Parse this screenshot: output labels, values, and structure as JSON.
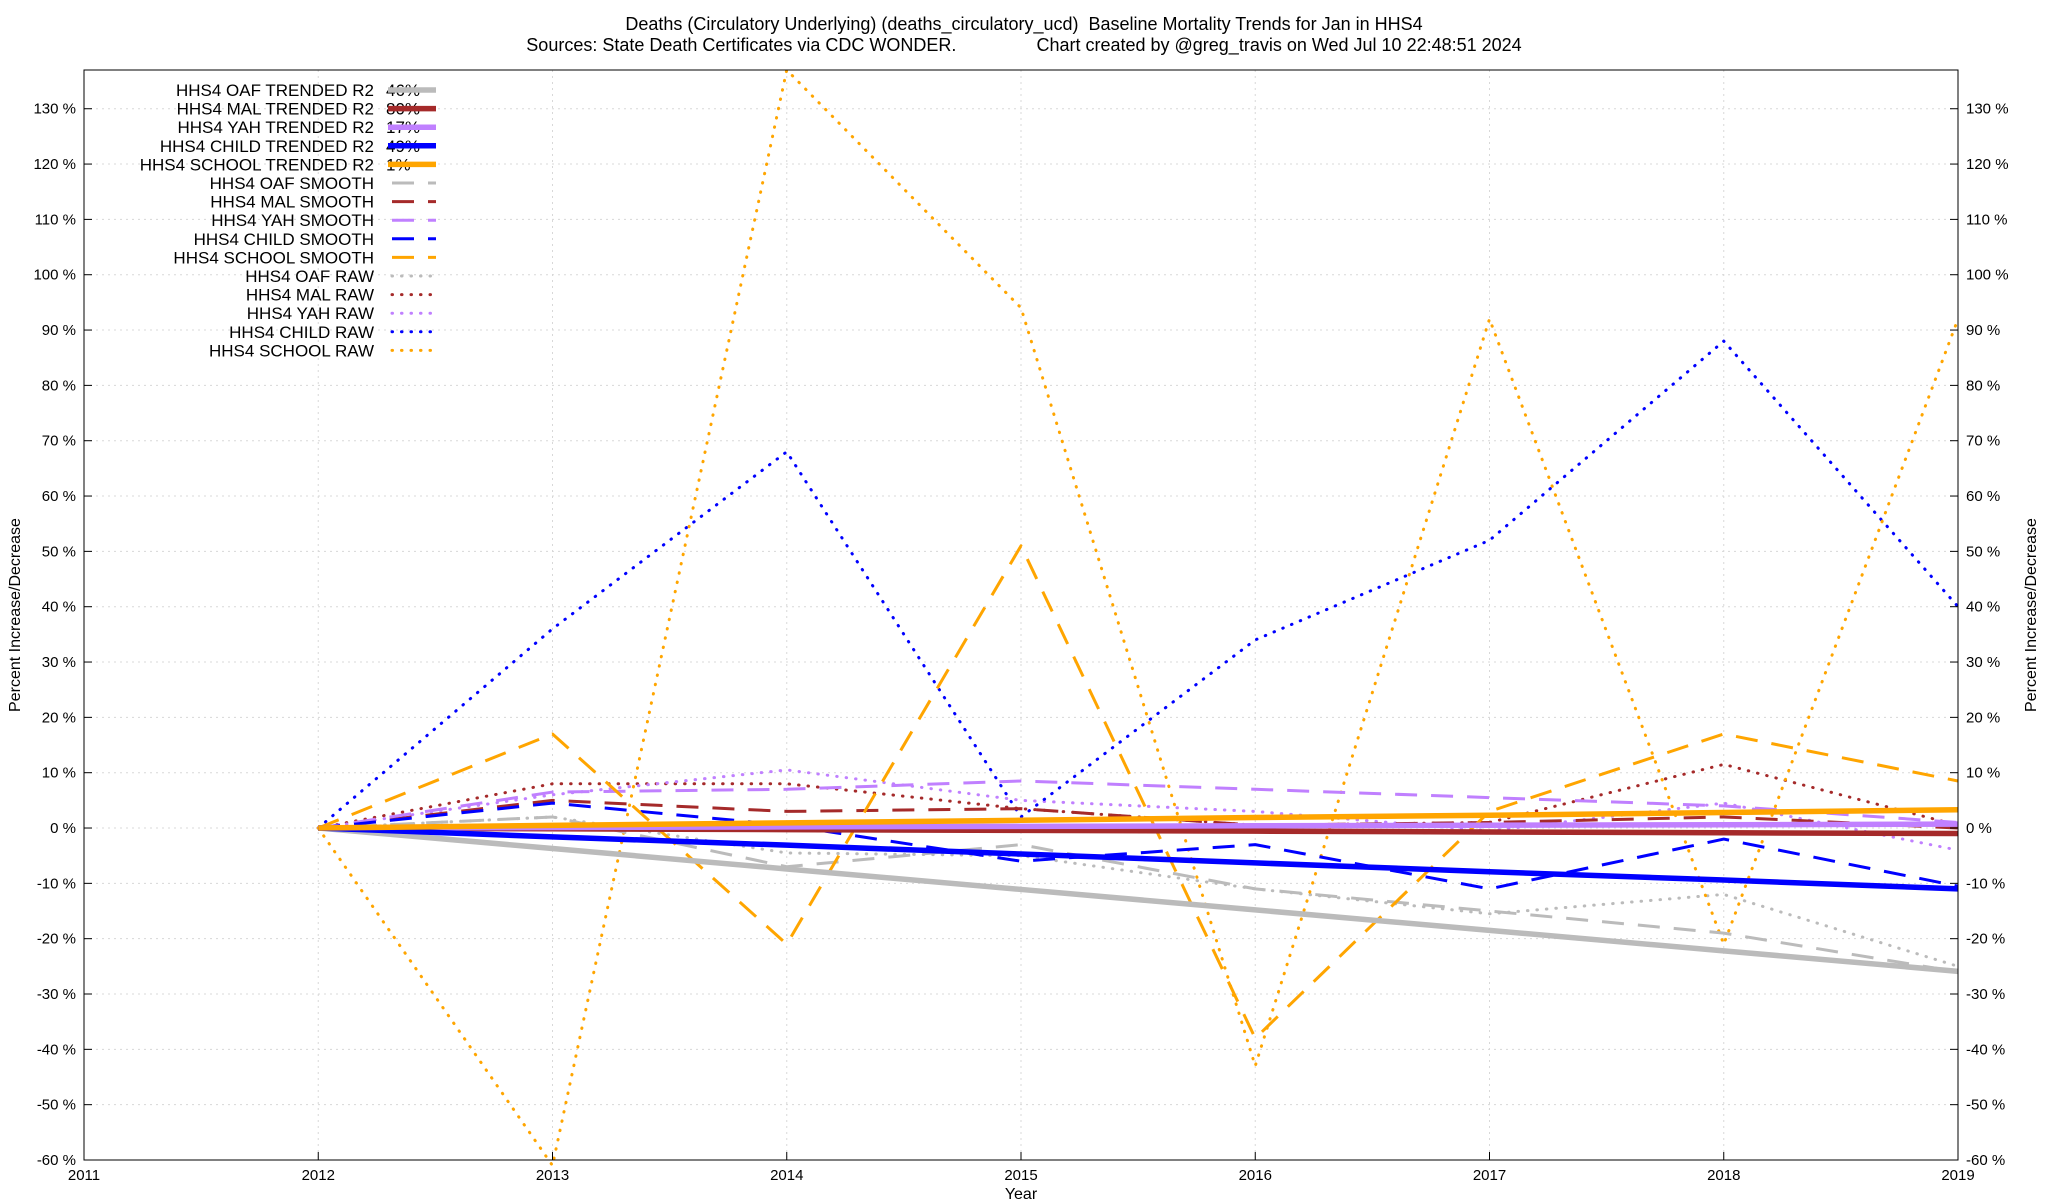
{
  "chart_data": {
    "type": "line",
    "title": "Deaths (Circulatory Underlying) (deaths_circulatory_ucd)  Baseline Mortality Trends for Jan in HHS4",
    "subtitle": "Sources: State Death Certificates via CDC WONDER.                Chart created by @greg_travis on Wed Jul 10 22:48:51 2024",
    "xlabel": "Year",
    "ylabel": "Percent Increase/Decrease",
    "y2label": "Percent Increase/Decrease",
    "xlim": [
      2011,
      2019
    ],
    "ylim": [
      -60,
      137
    ],
    "x_ticks": [
      "2011",
      "2012",
      "2013",
      "2014",
      "2015",
      "2016",
      "2017",
      "2018",
      "2019"
    ],
    "y_ticks": [
      "-60 %",
      "-50 %",
      "-40 %",
      "-30 %",
      "-20 %",
      "-10 %",
      "0 %",
      "10 %",
      "20 %",
      "30 %",
      "40 %",
      "50 %",
      "60 %",
      "70 %",
      "80 %",
      "90 %",
      "100 %",
      "110 %",
      "120 %",
      "130 %"
    ],
    "grid": true,
    "legend_position": "top-left",
    "x": [
      2012,
      2013,
      2014,
      2015,
      2016,
      2017,
      2018,
      2019
    ],
    "series": [
      {
        "name": "HHS4 OAF TRENDED R2",
        "r2": "46%",
        "kind": "trend",
        "color": "#bbbbbb",
        "values": [
          0,
          -3.7,
          -7.4,
          -11.1,
          -14.8,
          -18.5,
          -22.2,
          -25.9
        ]
      },
      {
        "name": "HHS4 MAL TRENDED R2",
        "r2": "80%",
        "kind": "trend",
        "color": "#a52a2a",
        "values": [
          0,
          -0.14,
          -0.29,
          -0.43,
          -0.57,
          -0.71,
          -0.86,
          -1.0
        ]
      },
      {
        "name": "HHS4 YAH TRENDED R2",
        "r2": "17%",
        "kind": "trend",
        "color": "#c080ff",
        "values": [
          0,
          0.1,
          0.2,
          0.3,
          0.4,
          0.5,
          0.6,
          0.7
        ]
      },
      {
        "name": "HHS4 CHILD TRENDED R2",
        "r2": "49%",
        "kind": "trend",
        "color": "#0000ff",
        "values": [
          0,
          -1.6,
          -3.1,
          -4.7,
          -6.3,
          -7.9,
          -9.4,
          -11.0
        ]
      },
      {
        "name": "HHS4 SCHOOL TRENDED R2",
        "r2": "1%",
        "kind": "trend",
        "color": "#ffa500",
        "values": [
          0,
          0.47,
          0.94,
          1.4,
          1.9,
          2.3,
          2.8,
          3.3
        ]
      },
      {
        "name": "HHS4 OAF SMOOTH",
        "r2": "",
        "kind": "smooth",
        "color": "#bbbbbb",
        "values": [
          0,
          2,
          -7,
          -3,
          -11,
          -15,
          -19,
          -26
        ]
      },
      {
        "name": "HHS4 MAL SMOOTH",
        "r2": "",
        "kind": "smooth",
        "color": "#a52a2a",
        "values": [
          0,
          5,
          3,
          3.5,
          0.5,
          1,
          2,
          0
        ]
      },
      {
        "name": "HHS4 YAH SMOOTH",
        "r2": "",
        "kind": "smooth",
        "color": "#c080ff",
        "values": [
          0,
          6.5,
          7,
          8.5,
          7,
          5.5,
          4,
          1
        ]
      },
      {
        "name": "HHS4 CHILD SMOOTH",
        "r2": "",
        "kind": "smooth",
        "color": "#0000ff",
        "values": [
          0,
          4.5,
          0.5,
          -6,
          -3,
          -11,
          -2,
          -10.5
        ]
      },
      {
        "name": "HHS4 SCHOOL SMOOTH",
        "r2": "",
        "kind": "smooth",
        "color": "#ffa500",
        "values": [
          0,
          17,
          -21,
          51,
          -38,
          3,
          17,
          8.5
        ]
      },
      {
        "name": "HHS4 OAF RAW",
        "r2": "",
        "kind": "raw",
        "color": "#bbbbbb",
        "values": [
          0,
          2,
          -4.5,
          -5,
          -11,
          -15.5,
          -12,
          -25
        ]
      },
      {
        "name": "HHS4 MAL RAW",
        "r2": "",
        "kind": "raw",
        "color": "#a52a2a",
        "values": [
          0,
          8,
          8,
          3.5,
          0.5,
          1,
          11.5,
          0.5
        ]
      },
      {
        "name": "HHS4 YAH RAW",
        "r2": "",
        "kind": "raw",
        "color": "#c080ff",
        "values": [
          0,
          6,
          10.5,
          5,
          3,
          -0.5,
          4.5,
          -4
        ]
      },
      {
        "name": "HHS4 CHILD RAW",
        "r2": "",
        "kind": "raw",
        "color": "#0000ff",
        "values": [
          0,
          36,
          68,
          2,
          34,
          52,
          88,
          40
        ]
      },
      {
        "name": "HHS4 SCHOOL RAW",
        "r2": "",
        "kind": "raw",
        "color": "#ffa500",
        "values": [
          0,
          -61,
          137,
          94,
          -43,
          92,
          -21,
          92
        ]
      }
    ]
  }
}
